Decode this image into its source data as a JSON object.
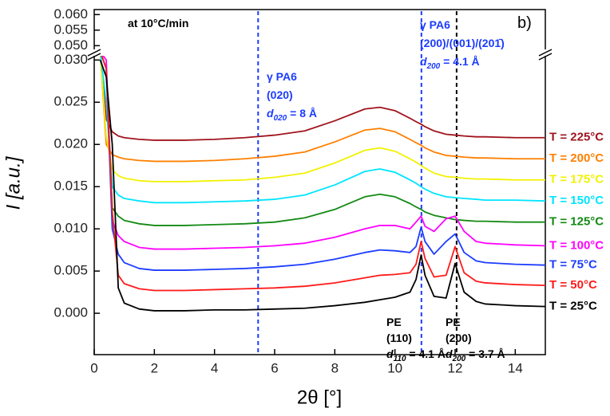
{
  "chart_data": {
    "type": "line",
    "xlabel": "2θ [°]",
    "ylabel": "I [a.u.]",
    "x": [
      0.2,
      0.4,
      0.6,
      0.8,
      1,
      1.5,
      2,
      3,
      4,
      5,
      6,
      7,
      8,
      9,
      9.5,
      10,
      10.5,
      10.7,
      10.87,
      11,
      11.3,
      11.7,
      12,
      12.3,
      12.7,
      13,
      14,
      15
    ],
    "series": [
      {
        "name": "T = 225°C",
        "color": "#a0141e",
        "values": [
          0.031,
          0.023,
          0.0215,
          0.021,
          0.0208,
          0.0206,
          0.0205,
          0.0205,
          0.0206,
          0.0208,
          0.0211,
          0.0216,
          0.0228,
          0.0242,
          0.0244,
          0.024,
          0.0231,
          0.0227,
          0.0224,
          0.0221,
          0.0216,
          0.0212,
          0.0211,
          0.021,
          0.0209,
          0.0209,
          0.0208,
          0.0208
        ]
      },
      {
        "name": "T = 200°C",
        "color": "#ff7f00",
        "values": [
          0.031,
          0.02,
          0.0188,
          0.0185,
          0.0183,
          0.0181,
          0.018,
          0.018,
          0.0181,
          0.0183,
          0.0186,
          0.0191,
          0.0203,
          0.0217,
          0.0219,
          0.0215,
          0.0206,
          0.0202,
          0.0199,
          0.0196,
          0.0191,
          0.0187,
          0.0186,
          0.0185,
          0.0184,
          0.0184,
          0.0183,
          0.0183
        ]
      },
      {
        "name": "T = 175°C",
        "color": "#f2f200",
        "values": [
          0.031,
          0.021,
          0.017,
          0.0163,
          0.016,
          0.0157,
          0.0156,
          0.0156,
          0.0157,
          0.0158,
          0.0161,
          0.0166,
          0.0178,
          0.0193,
          0.0196,
          0.0192,
          0.0183,
          0.0179,
          0.0175,
          0.0172,
          0.0166,
          0.0162,
          0.0161,
          0.016,
          0.0159,
          0.0159,
          0.0158,
          0.0158
        ]
      },
      {
        "name": "T = 150°C",
        "color": "#00e5ff",
        "values": [
          0.031,
          0.025,
          0.015,
          0.014,
          0.0136,
          0.0133,
          0.0131,
          0.0131,
          0.0132,
          0.0133,
          0.0135,
          0.014,
          0.0152,
          0.0168,
          0.0171,
          0.0167,
          0.0158,
          0.0154,
          0.015,
          0.0147,
          0.0142,
          0.0138,
          0.0137,
          0.0136,
          0.0135,
          0.0134,
          0.0134,
          0.0133
        ]
      },
      {
        "name": "T = 125°C",
        "color": "#138a13",
        "values": [
          0.031,
          0.029,
          0.0125,
          0.0115,
          0.011,
          0.0106,
          0.0104,
          0.0104,
          0.0105,
          0.0106,
          0.0108,
          0.0113,
          0.0123,
          0.0138,
          0.0141,
          0.0138,
          0.013,
          0.0126,
          0.0123,
          0.012,
          0.0116,
          0.0113,
          0.0111,
          0.011,
          0.0109,
          0.0109,
          0.0108,
          0.0108
        ]
      },
      {
        "name": "T = 100°C",
        "color": "#ff00ff",
        "values": [
          0.031,
          0.03,
          0.011,
          0.0092,
          0.0085,
          0.0078,
          0.0076,
          0.0076,
          0.0077,
          0.0078,
          0.008,
          0.0083,
          0.009,
          0.01,
          0.0104,
          0.0104,
          0.01,
          0.0108,
          0.0115,
          0.0103,
          0.0097,
          0.0112,
          0.0115,
          0.0097,
          0.0085,
          0.0083,
          0.0081,
          0.008
        ]
      },
      {
        "name": "T = 75°C",
        "color": "#1c3cff",
        "values": [
          0.031,
          0.029,
          0.01,
          0.007,
          0.006,
          0.0053,
          0.0051,
          0.0051,
          0.0052,
          0.0053,
          0.0055,
          0.0058,
          0.0064,
          0.0072,
          0.0075,
          0.0074,
          0.0072,
          0.0079,
          0.0102,
          0.0085,
          0.007,
          0.0085,
          0.0094,
          0.0072,
          0.0062,
          0.006,
          0.0058,
          0.0057
        ]
      },
      {
        "name": "T = 50°C",
        "color": "#ff1a1a",
        "values": [
          0.031,
          0.029,
          0.012,
          0.0045,
          0.0035,
          0.0029,
          0.0027,
          0.0027,
          0.0028,
          0.0029,
          0.003,
          0.0032,
          0.0036,
          0.0042,
          0.0045,
          0.0046,
          0.0048,
          0.0058,
          0.0085,
          0.0065,
          0.0043,
          0.0045,
          0.0079,
          0.0048,
          0.0038,
          0.0036,
          0.0034,
          0.0033
        ]
      },
      {
        "name": "T = 25°C",
        "color": "#000000",
        "values": [
          0.03,
          0.028,
          0.02,
          0.003,
          0.0012,
          0.0005,
          0.0003,
          0.0003,
          0.0004,
          0.0004,
          0.0005,
          0.0006,
          0.0009,
          0.0013,
          0.0016,
          0.0019,
          0.0025,
          0.004,
          0.0069,
          0.0045,
          0.002,
          0.0018,
          0.0059,
          0.0025,
          0.0014,
          0.0011,
          0.0009,
          0.0008
        ]
      }
    ],
    "xlim": [
      0,
      15
    ],
    "xticks": [
      0,
      2,
      4,
      6,
      8,
      10,
      12,
      14
    ],
    "ylim": [
      -0.0049,
      0.0305
    ],
    "yticks": [
      {
        "value": 0,
        "label": "0.000"
      },
      {
        "value": 0.005,
        "label": "0.005"
      },
      {
        "value": 0.01,
        "label": "0.010"
      },
      {
        "value": 0.015,
        "label": "0.015"
      },
      {
        "value": 0.02,
        "label": "0.020"
      },
      {
        "value": 0.025,
        "label": "0.025"
      },
      {
        "value": 0.03,
        "label": "0.030"
      }
    ],
    "upper_ylim": [
      0.0488,
      0.0611
    ],
    "upper_yticks": [
      {
        "value": 0.05,
        "label": "0.050"
      },
      {
        "value": 0.055,
        "label": "0.055"
      },
      {
        "value": 0.06,
        "label": "0.060"
      }
    ],
    "reference_lines": [
      {
        "x": 5.45,
        "color": "#1c3cff"
      },
      {
        "x": 10.88,
        "color": "#1c3cff"
      },
      {
        "x": 12.05,
        "color": "#000000"
      }
    ],
    "annotations": [
      {
        "text": "at 10°C/min"
      },
      {
        "text": "b)"
      },
      {
        "text": "γ PA6"
      },
      {
        "text": "(020)"
      },
      {
        "text": "d",
        "sub": "020",
        "tail": " = 8 Å"
      },
      {
        "text": "γ PA6"
      },
      {
        "text": "(200)/(001)/(201̄)"
      },
      {
        "text": "d",
        "sub": "200",
        "tail": " = 4.1 Å"
      },
      {
        "text": "PE"
      },
      {
        "text": "(110)"
      },
      {
        "text": "d",
        "sub": "110",
        "tail": " = 4.1 Å"
      },
      {
        "text": "PE"
      },
      {
        "text": "(200)"
      },
      {
        "text": "d",
        "sub": "200",
        "tail": " = 3.7 Å"
      }
    ]
  }
}
